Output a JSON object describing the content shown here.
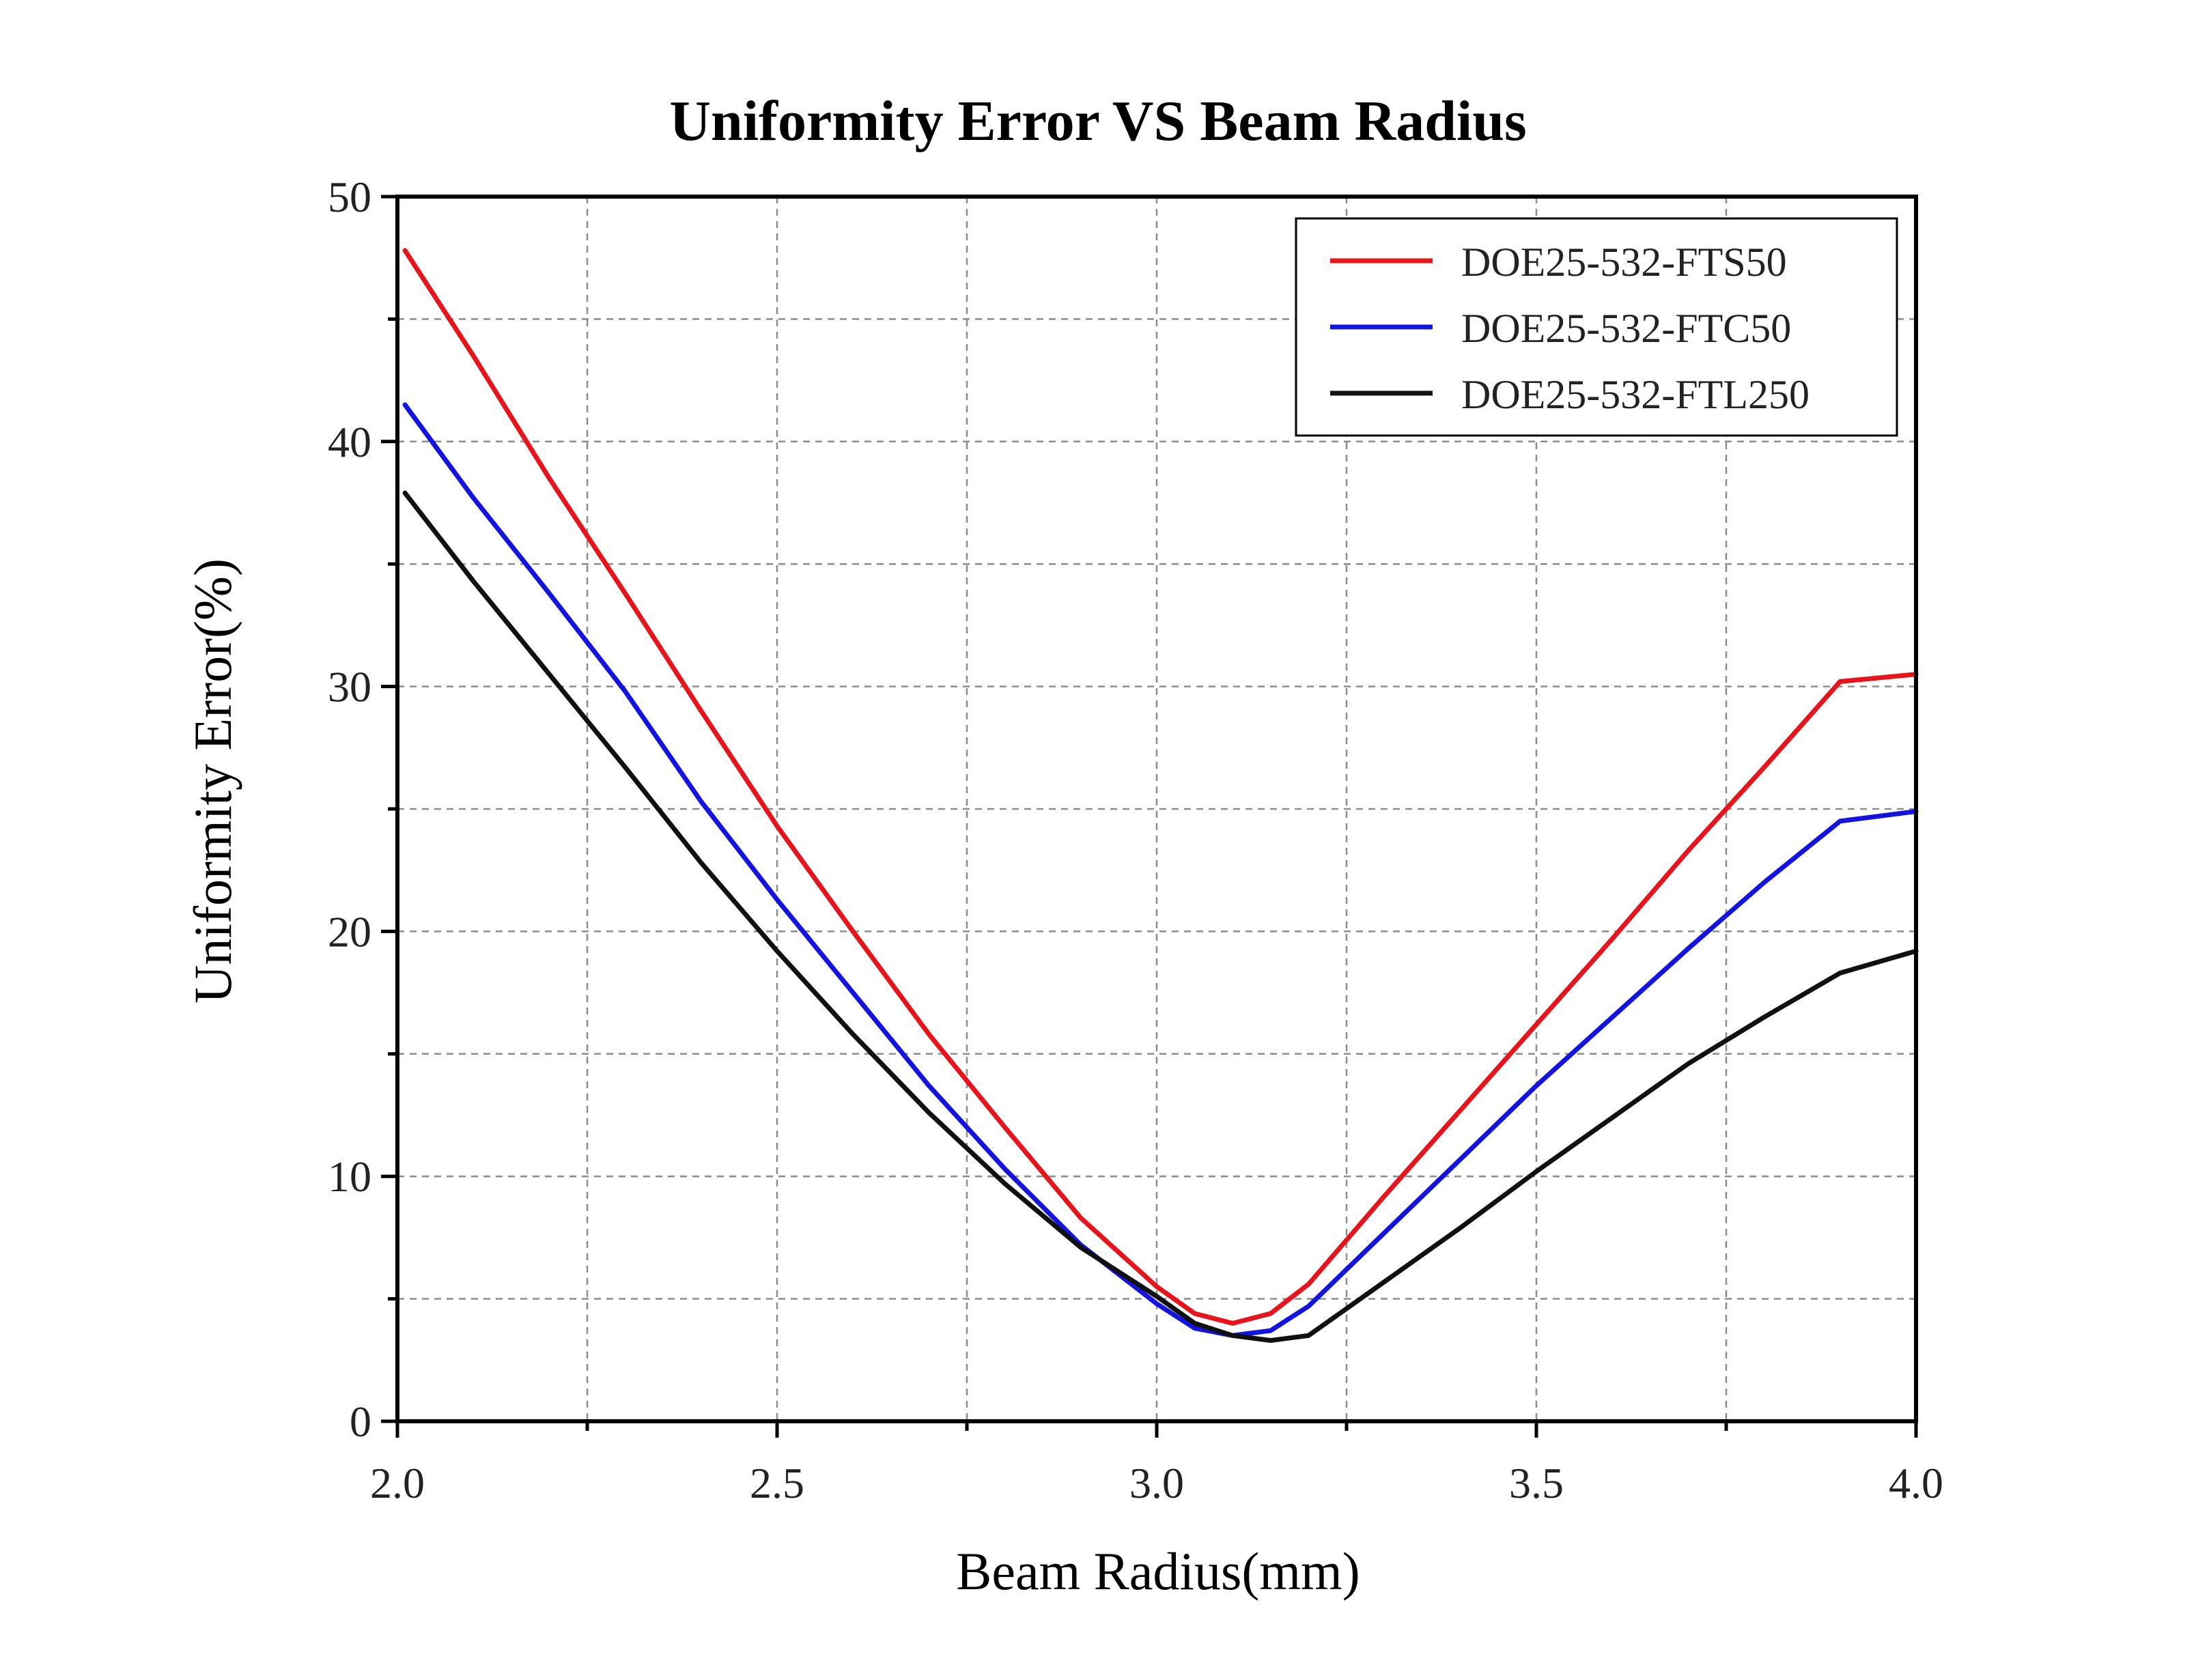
{
  "chart_data": {
    "type": "line",
    "title": "Uniformity Error VS Beam Radius",
    "xlabel": "Beam Radius(mm)",
    "ylabel": "Uniformity Error(%)",
    "xlim": [
      2.0,
      4.0
    ],
    "ylim": [
      0,
      50
    ],
    "x_ticks": [
      "2.0",
      "2.5",
      "3.0",
      "3.5",
      "4.0"
    ],
    "y_ticks": [
      "0",
      "10",
      "20",
      "30",
      "40",
      "50"
    ],
    "grid": true,
    "legend_position": "top-right",
    "series": [
      {
        "name": "DOE25-532-FTS50",
        "color": "#e8141b",
        "x": [
          2.01,
          2.1,
          2.2,
          2.3,
          2.4,
          2.5,
          2.6,
          2.7,
          2.8,
          2.9,
          3.0,
          3.05,
          3.1,
          3.15,
          3.2,
          3.3,
          3.4,
          3.5,
          3.6,
          3.7,
          3.8,
          3.9,
          4.0
        ],
        "values": [
          47.8,
          43.5,
          38.5,
          33.8,
          29.0,
          24.3,
          20.0,
          15.8,
          12.0,
          8.3,
          5.5,
          4.4,
          4.0,
          4.4,
          5.6,
          9.2,
          12.7,
          16.2,
          19.7,
          23.3,
          26.7,
          30.2,
          30.5
        ]
      },
      {
        "name": "DOE25-532-FTC50",
        "color": "#1414e0",
        "x": [
          2.01,
          2.1,
          2.2,
          2.3,
          2.4,
          2.5,
          2.6,
          2.7,
          2.8,
          2.9,
          3.0,
          3.05,
          3.1,
          3.15,
          3.2,
          3.3,
          3.4,
          3.5,
          3.6,
          3.7,
          3.8,
          3.9,
          4.0
        ],
        "values": [
          41.5,
          37.7,
          33.8,
          29.8,
          25.3,
          21.3,
          17.5,
          13.7,
          10.3,
          7.2,
          4.8,
          3.8,
          3.5,
          3.7,
          4.7,
          7.7,
          10.7,
          13.7,
          16.5,
          19.3,
          22.0,
          24.5,
          24.9
        ]
      },
      {
        "name": "DOE25-532-FTL250",
        "color": "#111111",
        "x": [
          2.01,
          2.1,
          2.2,
          2.3,
          2.4,
          2.5,
          2.6,
          2.7,
          2.8,
          2.9,
          3.0,
          3.05,
          3.1,
          3.15,
          3.2,
          3.3,
          3.4,
          3.5,
          3.6,
          3.7,
          3.8,
          3.9,
          4.0
        ],
        "values": [
          37.9,
          34.3,
          30.5,
          26.7,
          22.8,
          19.2,
          15.8,
          12.6,
          9.7,
          7.1,
          5.1,
          4.0,
          3.5,
          3.3,
          3.5,
          5.7,
          7.9,
          10.2,
          12.4,
          14.6,
          16.5,
          18.3,
          19.2
        ]
      }
    ]
  }
}
